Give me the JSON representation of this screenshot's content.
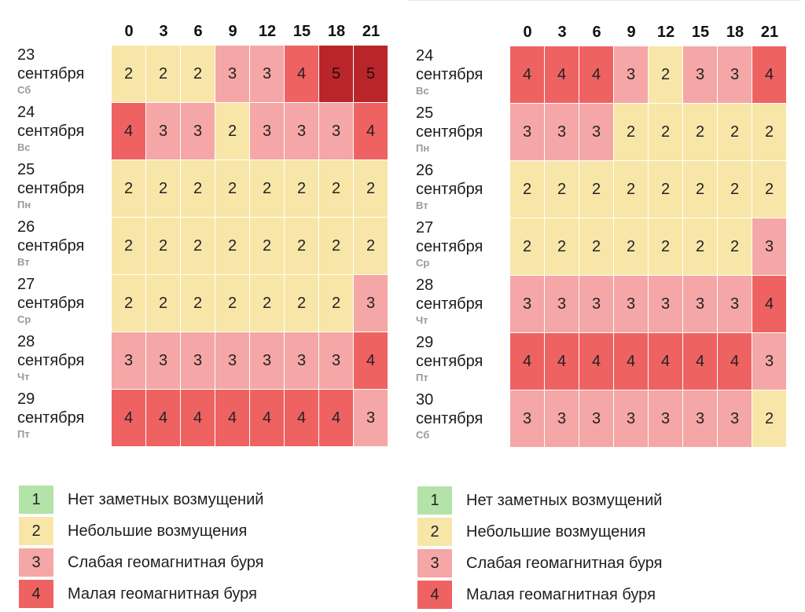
{
  "colors": {
    "1": "#b3e3a8",
    "2": "#f8e6a8",
    "3": "#f5a6a6",
    "4": "#ef6262",
    "5": "#b8262b"
  },
  "chart_data": [
    {
      "type": "heatmap",
      "title": "",
      "x_label": "",
      "hours": [
        "0",
        "3",
        "6",
        "9",
        "12",
        "15",
        "18",
        "21"
      ],
      "rows": [
        {
          "day": "23",
          "month": "сентября",
          "weekday": "Сб",
          "values": [
            2,
            2,
            2,
            3,
            3,
            4,
            5,
            5
          ]
        },
        {
          "day": "24",
          "month": "сентября",
          "weekday": "Вс",
          "values": [
            4,
            3,
            3,
            2,
            3,
            3,
            3,
            4
          ]
        },
        {
          "day": "25",
          "month": "сентября",
          "weekday": "Пн",
          "values": [
            2,
            2,
            2,
            2,
            2,
            2,
            2,
            2
          ]
        },
        {
          "day": "26",
          "month": "сентября",
          "weekday": "Вт",
          "values": [
            2,
            2,
            2,
            2,
            2,
            2,
            2,
            2
          ]
        },
        {
          "day": "27",
          "month": "сентября",
          "weekday": "Ср",
          "values": [
            2,
            2,
            2,
            2,
            2,
            2,
            2,
            3
          ]
        },
        {
          "day": "28",
          "month": "сентября",
          "weekday": "Чт",
          "values": [
            3,
            3,
            3,
            3,
            3,
            3,
            3,
            4
          ]
        },
        {
          "day": "29",
          "month": "сентября",
          "weekday": "Пт",
          "values": [
            4,
            4,
            4,
            4,
            4,
            4,
            4,
            3
          ]
        }
      ]
    },
    {
      "type": "heatmap",
      "title": "",
      "x_label": "",
      "hours": [
        "0",
        "3",
        "6",
        "9",
        "12",
        "15",
        "18",
        "21"
      ],
      "rows": [
        {
          "day": "24",
          "month": "сентября",
          "weekday": "Вс",
          "values": [
            4,
            4,
            4,
            3,
            2,
            3,
            3,
            4
          ]
        },
        {
          "day": "25",
          "month": "сентября",
          "weekday": "Пн",
          "values": [
            3,
            3,
            3,
            2,
            2,
            2,
            2,
            2
          ]
        },
        {
          "day": "26",
          "month": "сентября",
          "weekday": "Вт",
          "values": [
            2,
            2,
            2,
            2,
            2,
            2,
            2,
            2
          ]
        },
        {
          "day": "27",
          "month": "сентября",
          "weekday": "Ср",
          "values": [
            2,
            2,
            2,
            2,
            2,
            2,
            2,
            3
          ]
        },
        {
          "day": "28",
          "month": "сентября",
          "weekday": "Чт",
          "values": [
            3,
            3,
            3,
            3,
            3,
            3,
            3,
            4
          ]
        },
        {
          "day": "29",
          "month": "сентября",
          "weekday": "Пт",
          "values": [
            4,
            4,
            4,
            4,
            4,
            4,
            4,
            3
          ]
        },
        {
          "day": "30",
          "month": "сентября",
          "weekday": "Сб",
          "values": [
            3,
            3,
            3,
            3,
            3,
            3,
            3,
            2
          ]
        }
      ]
    }
  ],
  "legend": [
    {
      "level": "1",
      "label": "Нет заметных возмущений"
    },
    {
      "level": "2",
      "label": "Небольшие возмущения"
    },
    {
      "level": "3",
      "label": "Слабая геомагнитная буря"
    },
    {
      "level": "4",
      "label": "Малая геомагнитная буря"
    }
  ]
}
